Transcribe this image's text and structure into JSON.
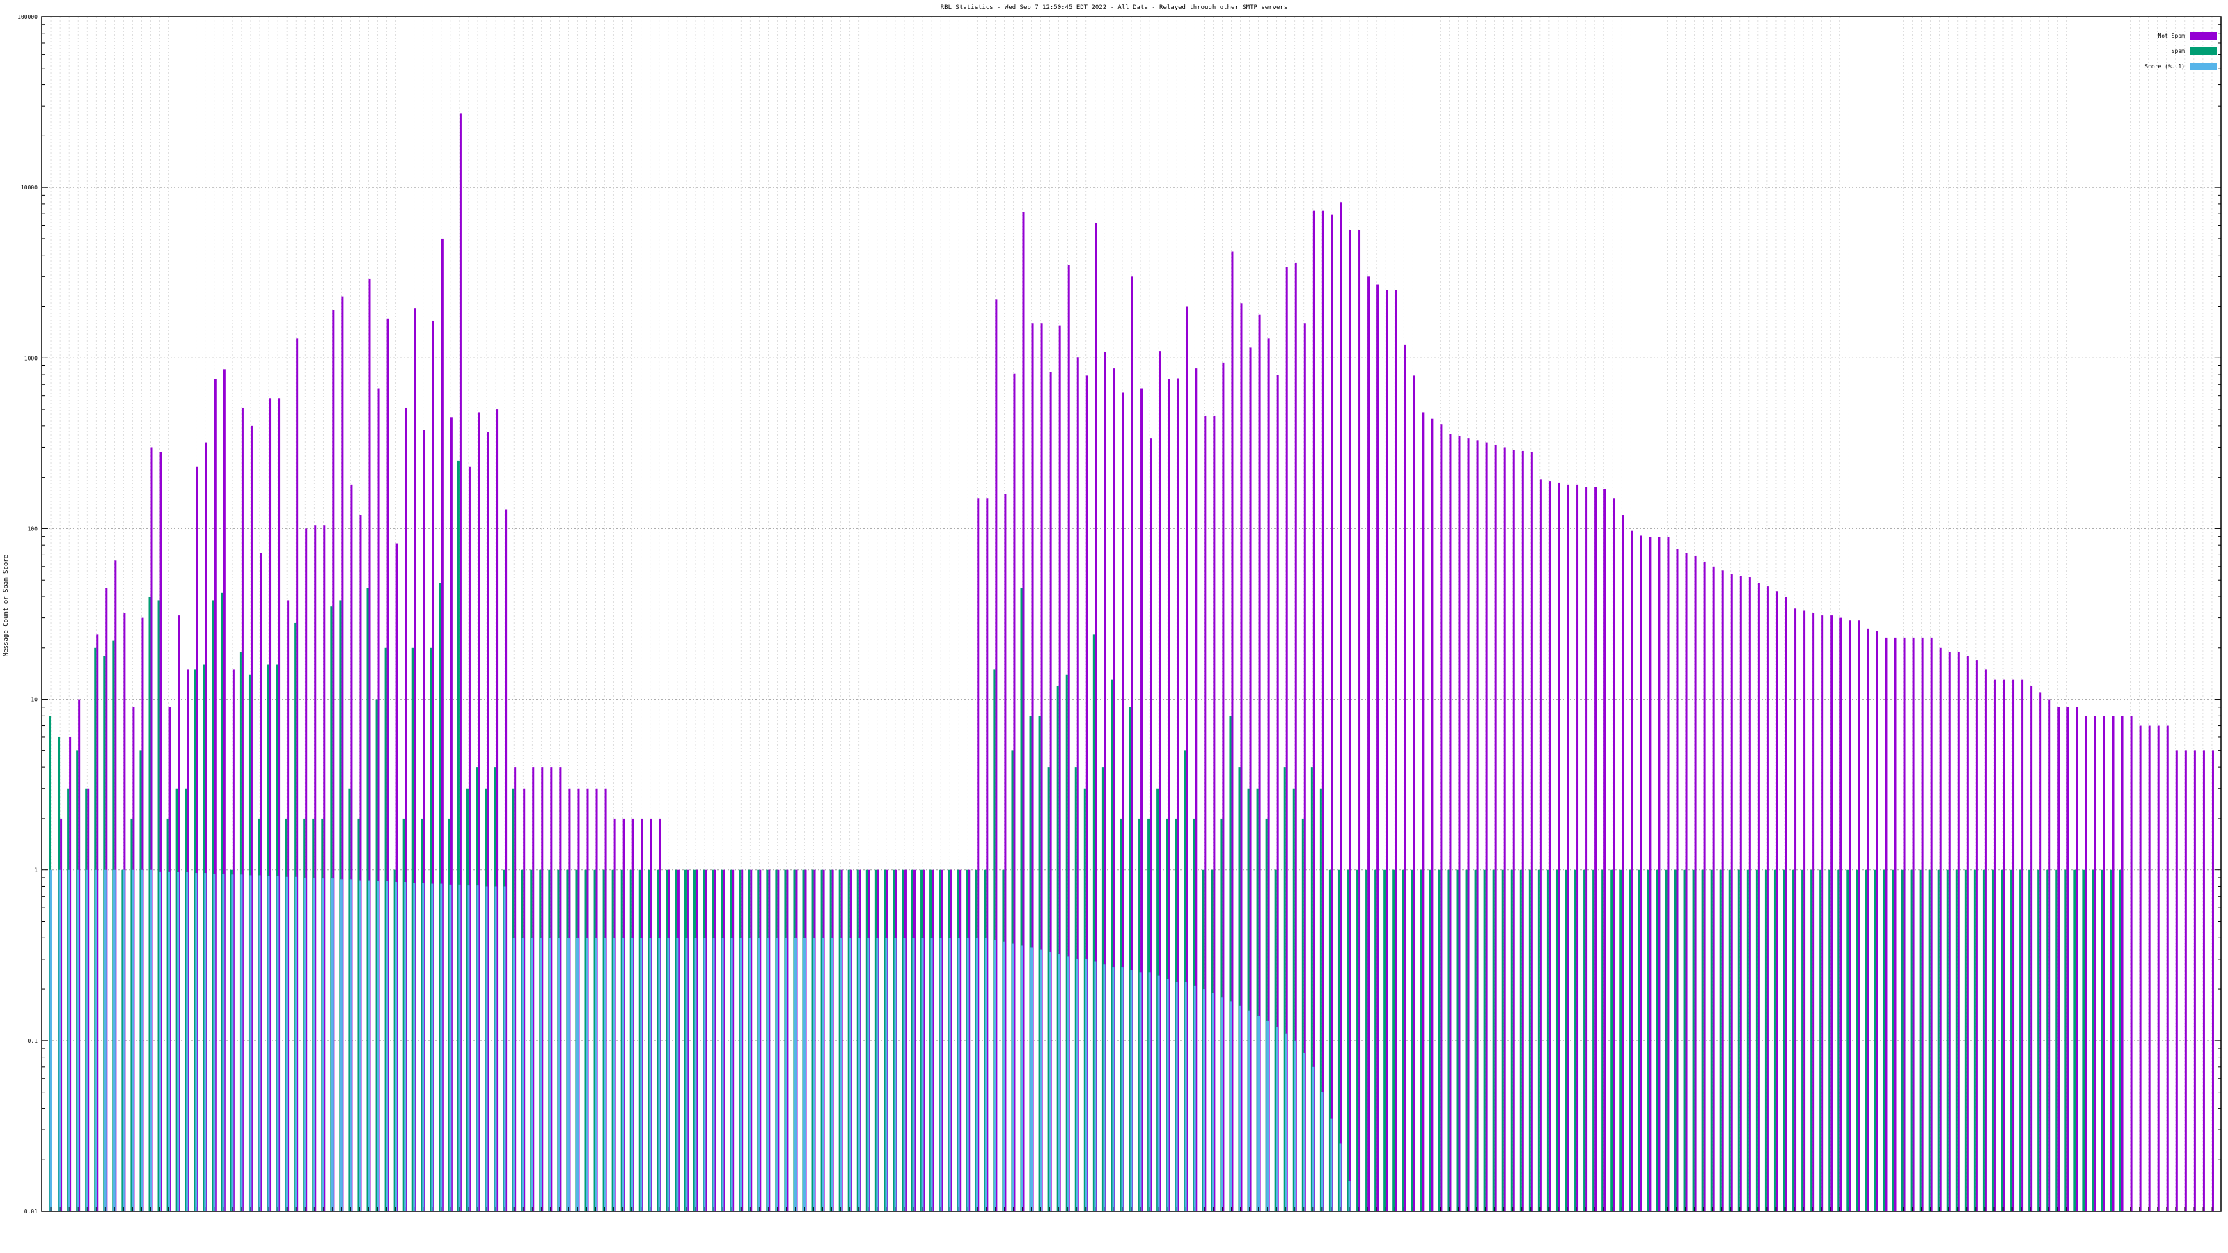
{
  "page": {
    "title": "RBL Statistics - Wed Sep  7 12:50:45 EDT 2022 - All Data - Relayed through other SMTP servers"
  },
  "chart_data": {
    "type": "bar",
    "title": "RBL Statistics - Wed Sep  7 12:50:45 EDT 2022 - All Data - Relayed through other SMTP servers",
    "xlabel": "",
    "ylabel": "Message Count or Spam Score",
    "yscale": "log",
    "ylim": [
      0.01,
      100000
    ],
    "grid": true,
    "legend_position": "top-right",
    "y_ticks": [
      "0.01",
      "0.1",
      "1",
      "10",
      "100",
      "1000",
      "10000",
      "100000"
    ],
    "series": [
      {
        "name": "Not Spam",
        "color": "#9400d3",
        "values": [
          0,
          2,
          6,
          10,
          3,
          24,
          45,
          65,
          32,
          9,
          30,
          300,
          280,
          9,
          31,
          15,
          230,
          320,
          750,
          860,
          15,
          510,
          400,
          72,
          580,
          580,
          38,
          1300,
          100,
          105,
          105,
          1900,
          2300,
          180,
          120,
          2900,
          660,
          1700,
          82,
          510,
          1950,
          380,
          1650,
          5000,
          450,
          27000,
          230,
          480,
          370,
          500,
          130,
          4,
          3,
          4,
          4,
          4,
          4,
          3,
          3,
          3,
          3,
          3,
          2,
          2,
          2,
          2,
          2,
          2,
          1,
          1,
          1,
          1,
          1,
          1,
          1,
          1,
          1,
          1,
          1,
          1,
          1,
          1,
          1,
          1,
          1,
          1,
          1,
          1,
          1,
          1,
          1,
          1,
          1,
          1,
          1,
          1,
          1,
          1,
          1,
          1,
          1,
          1,
          150,
          150,
          2200,
          160,
          810,
          7200,
          1600,
          1600,
          830,
          1550,
          3500,
          1010,
          790,
          6200,
          1090,
          870,
          630,
          3000,
          660,
          340,
          1100,
          750,
          760,
          2000,
          870,
          460,
          460,
          940,
          4200,
          2100,
          1150,
          1800,
          1300,
          800,
          3400,
          3600,
          1600,
          7300,
          7300,
          6900,
          8200,
          5600,
          5600,
          3000,
          2700,
          2500,
          2500,
          1200,
          790,
          480,
          440,
          410,
          360,
          350,
          340,
          330,
          320,
          310,
          300,
          290,
          285,
          280,
          195,
          190,
          185,
          180,
          180,
          175,
          175,
          170,
          150,
          120,
          97,
          91,
          89,
          89,
          89,
          76,
          72,
          69,
          64,
          60,
          57,
          54,
          53,
          52,
          48,
          46,
          43,
          40,
          34,
          33,
          32,
          31,
          31,
          30,
          29,
          29,
          26,
          25,
          23,
          23,
          23,
          23,
          23,
          23,
          20,
          19,
          19,
          18,
          17,
          15,
          13,
          13,
          13,
          13,
          12,
          11,
          10,
          9,
          9,
          9,
          8,
          8,
          8,
          8,
          8,
          8,
          7,
          7,
          7,
          7,
          5,
          5,
          5,
          5,
          5
        ]
      },
      {
        "name": "Spam",
        "color": "#009e73",
        "values": [
          8,
          6,
          3,
          5,
          3,
          20,
          18,
          22,
          1,
          2,
          5,
          40,
          38,
          2,
          3,
          3,
          15,
          16,
          38,
          42,
          1,
          19,
          14,
          2,
          16,
          16,
          2,
          28,
          2,
          2,
          2,
          35,
          38,
          3,
          2,
          45,
          10,
          20,
          1,
          2,
          20,
          2,
          20,
          48,
          2,
          250,
          3,
          4,
          3,
          4,
          1,
          3,
          1,
          1,
          1,
          1,
          1,
          1,
          1,
          1,
          1,
          1,
          1,
          1,
          1,
          1,
          1,
          1,
          1,
          1,
          1,
          1,
          1,
          1,
          1,
          1,
          1,
          1,
          1,
          1,
          1,
          1,
          1,
          1,
          1,
          1,
          1,
          1,
          1,
          1,
          1,
          1,
          1,
          1,
          1,
          1,
          1,
          1,
          1,
          1,
          1,
          1,
          1,
          1,
          15,
          1,
          5,
          45,
          8,
          8,
          4,
          12,
          14,
          4,
          3,
          24,
          4,
          13,
          2,
          9,
          2,
          2,
          3,
          2,
          2,
          5,
          2,
          1,
          1,
          2,
          8,
          4,
          3,
          3,
          2,
          1,
          4,
          3,
          2,
          4,
          3,
          1,
          1,
          1,
          1,
          1,
          1,
          1,
          1,
          1,
          1,
          1,
          1,
          1,
          1,
          1,
          1,
          1,
          1,
          1,
          1,
          1,
          1,
          1,
          1,
          1,
          1,
          1,
          1,
          1,
          1,
          1,
          1,
          1,
          1,
          1,
          1,
          1,
          1,
          1,
          1,
          1,
          1,
          1,
          1,
          1,
          1,
          1,
          1,
          1,
          1,
          1,
          1,
          1,
          1,
          1,
          1,
          1,
          1,
          1,
          1,
          1,
          1,
          1,
          1,
          1,
          1,
          1,
          1,
          1,
          1,
          1,
          1,
          1,
          1,
          1,
          1,
          1,
          1,
          1,
          1,
          1,
          1,
          1,
          1,
          1,
          1,
          1,
          1
        ]
      },
      {
        "name": "Score (%..1)",
        "color": "#56b4e9",
        "values": [
          1,
          1,
          1,
          1,
          1,
          1,
          1,
          1,
          1,
          1,
          1,
          1,
          0.98,
          0.98,
          0.97,
          0.97,
          0.96,
          0.96,
          0.95,
          0.95,
          0.94,
          0.94,
          0.93,
          0.93,
          0.92,
          0.92,
          0.91,
          0.91,
          0.9,
          0.9,
          0.89,
          0.89,
          0.88,
          0.88,
          0.87,
          0.87,
          0.86,
          0.86,
          0.85,
          0.85,
          0.84,
          0.84,
          0.83,
          0.83,
          0.82,
          0.82,
          0.81,
          0.81,
          0.8,
          0.8,
          0.8,
          0.4,
          0.4,
          0.4,
          0.4,
          0.4,
          0.4,
          0.4,
          0.4,
          0.4,
          0.4,
          0.4,
          0.4,
          0.4,
          0.4,
          0.4,
          0.4,
          0.4,
          0.4,
          0.4,
          0.4,
          0.4,
          0.4,
          0.4,
          0.4,
          0.4,
          0.4,
          0.4,
          0.4,
          0.4,
          0.4,
          0.4,
          0.4,
          0.4,
          0.4,
          0.4,
          0.4,
          0.4,
          0.4,
          0.4,
          0.4,
          0.4,
          0.4,
          0.4,
          0.4,
          0.4,
          0.4,
          0.4,
          0.4,
          0.4,
          0.4,
          0.4,
          0.4,
          0.4,
          0.39,
          0.38,
          0.37,
          0.36,
          0.35,
          0.34,
          0.33,
          0.32,
          0.31,
          0.3,
          0.3,
          0.29,
          0.28,
          0.27,
          0.27,
          0.26,
          0.25,
          0.25,
          0.24,
          0.23,
          0.22,
          0.22,
          0.21,
          0.2,
          0.19,
          0.18,
          0.17,
          0.16,
          0.15,
          0.14,
          0.13,
          0.12,
          0.11,
          0.1,
          0.085,
          0.07,
          0.05,
          0.035,
          0.025,
          0.015
        ]
      }
    ]
  }
}
